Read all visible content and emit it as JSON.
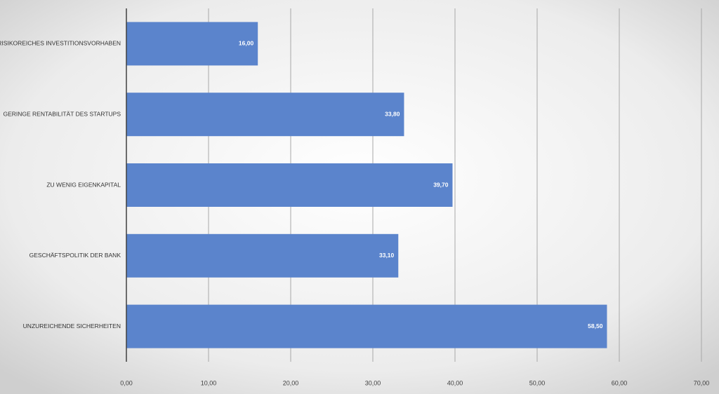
{
  "chart_data": {
    "type": "hbar",
    "categories": [
      "RISIKOREICHES INVESTITIONSVORHABEN",
      "GERINGE RENTABILITÄT DES STARTUPS",
      "ZU WENIG EIGENKAPITAL",
      "GESCHÄFTSPOLITIK DER BANK",
      "UNZUREICHENDE SICHERHEITEN"
    ],
    "values": [
      16,
      33.8,
      39.7,
      33.1,
      58.5
    ],
    "value_labels": [
      "16,00",
      "33,80",
      "39,70",
      "33,10",
      "58,50"
    ],
    "color": "#5b84cc",
    "xlim": [
      0,
      70
    ],
    "xticks": [
      {
        "value": 0,
        "label": "0,00"
      },
      {
        "value": 10,
        "label": "10,00"
      },
      {
        "value": 20,
        "label": "20,00"
      },
      {
        "value": 30,
        "label": "30,00"
      },
      {
        "value": 40,
        "label": "40,00"
      },
      {
        "value": 50,
        "label": "50,00"
      },
      {
        "value": 60,
        "label": "60,00"
      },
      {
        "value": 70,
        "label": "70,00"
      }
    ],
    "grid": true
  }
}
